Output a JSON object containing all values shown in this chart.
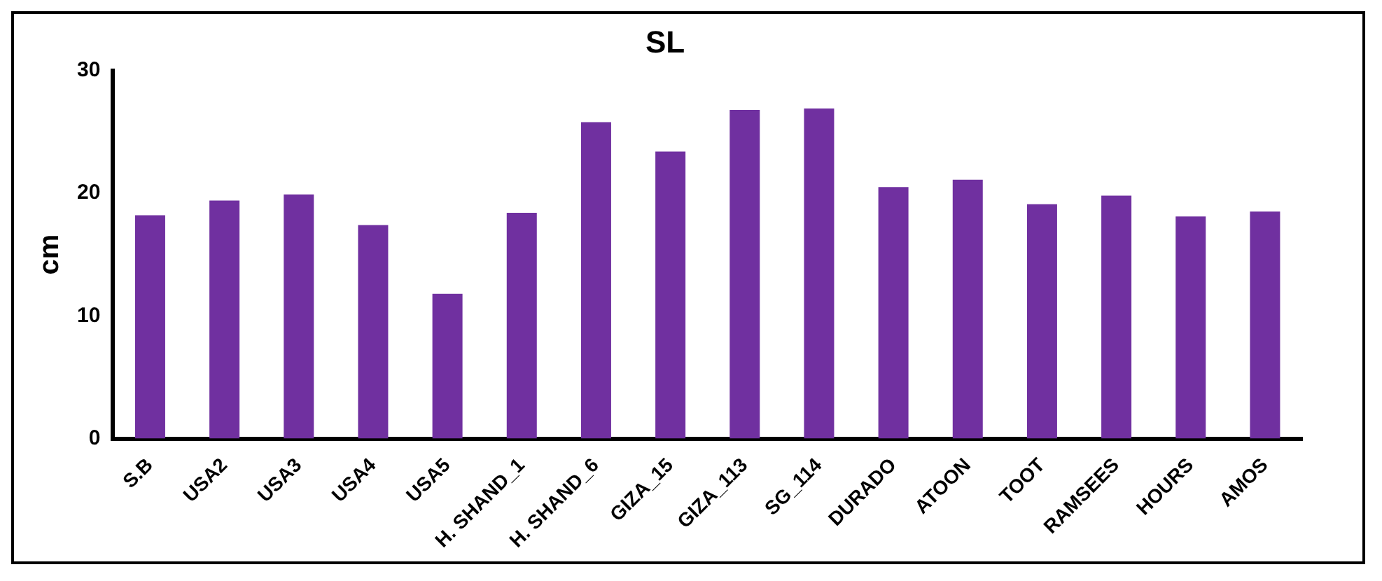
{
  "chart_data": {
    "type": "bar",
    "title": "SL",
    "ylabel": "cm",
    "categories": [
      "S.B",
      "USA2",
      "USA3",
      "USA4",
      "USA5",
      "H. SHAND_1",
      "H. SHAND_6",
      "GIZA_15",
      "GIZA_113",
      "SG_114",
      "DURADO",
      "ATOON",
      "TOOT",
      "RAMSEES",
      "HOURS",
      "AMOS"
    ],
    "values": [
      18.2,
      19.4,
      19.9,
      17.4,
      11.8,
      18.4,
      25.8,
      23.4,
      26.8,
      26.9,
      20.5,
      21.1,
      19.1,
      19.8,
      18.1,
      18.5
    ],
    "color": "#7030a0",
    "ylim": [
      0,
      30
    ],
    "yticks": [
      0,
      10,
      20,
      30
    ],
    "grid": false,
    "legend": false
  }
}
